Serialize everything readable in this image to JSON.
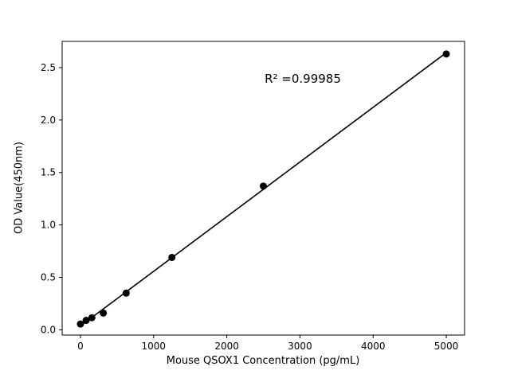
{
  "chart_data": {
    "type": "scatter",
    "title": "",
    "xlabel": "Mouse QSOX1 Concentration (pg/mL)",
    "ylabel": "OD Value(450nm)",
    "annotation": "R² =0.99985",
    "line_color": "#000000",
    "marker_color": "#000000",
    "xlim": [
      -250,
      5250
    ],
    "ylim": [
      -0.05,
      2.75
    ],
    "xticks": [
      0,
      1000,
      2000,
      3000,
      4000,
      5000
    ],
    "yticks": [
      0.0,
      0.5,
      1.0,
      1.5,
      2.0,
      2.5
    ],
    "line_x_range": [
      0,
      5000
    ],
    "points": [
      {
        "x": 0,
        "y": 0.055
      },
      {
        "x": 78,
        "y": 0.09
      },
      {
        "x": 156,
        "y": 0.115
      },
      {
        "x": 312,
        "y": 0.16
      },
      {
        "x": 625,
        "y": 0.35
      },
      {
        "x": 1250,
        "y": 0.69
      },
      {
        "x": 2500,
        "y": 1.37
      },
      {
        "x": 5000,
        "y": 2.63
      }
    ]
  }
}
